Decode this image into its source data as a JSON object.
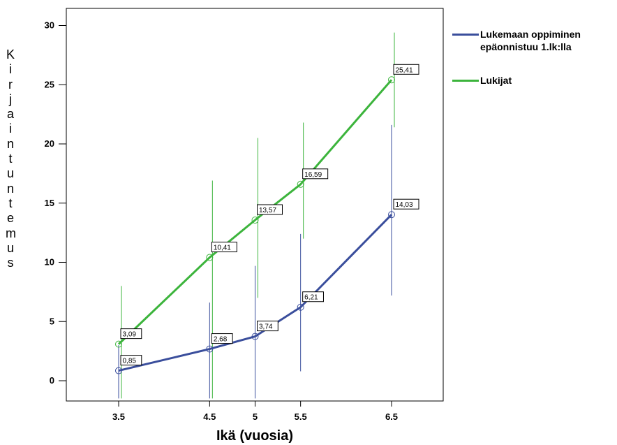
{
  "chart_data": {
    "type": "line",
    "xlabel": "Ikä (vuosia)",
    "ylabel": "Kirjaintuntemus",
    "x": [
      "3.5",
      "4.5",
      "5",
      "5.5",
      "6.5"
    ],
    "xlim": [
      3.5,
      6.5
    ],
    "ylim": [
      -1.5,
      31.5
    ],
    "yticks": [
      0,
      5,
      10,
      15,
      20,
      25,
      30
    ],
    "grid": false,
    "legend_position": "right",
    "series": [
      {
        "name": "Lukemaan oppiminen epäonnistuu 1.lk:lla",
        "color": "#3a4e9c",
        "values": [
          0.85,
          2.68,
          3.74,
          6.21,
          14.03
        ],
        "value_labels": [
          "0,85",
          "2,68",
          "3,74",
          "6,21",
          "14,03"
        ],
        "error_low": [
          -1.5,
          -1.5,
          -1.5,
          0.8,
          7.2
        ],
        "error_high": [
          3.0,
          6.6,
          9.7,
          12.4,
          21.6
        ]
      },
      {
        "name": "Lukijat",
        "color": "#3cb43c",
        "values": [
          3.09,
          10.41,
          13.57,
          16.59,
          25.41
        ],
        "value_labels": [
          "3,09",
          "10,41",
          "13,57",
          "16,59",
          "25,41"
        ],
        "error_low": [
          -1.5,
          -1.5,
          7.0,
          12.0,
          21.4
        ],
        "error_high": [
          8.0,
          16.9,
          20.5,
          21.8,
          29.4
        ]
      }
    ]
  }
}
